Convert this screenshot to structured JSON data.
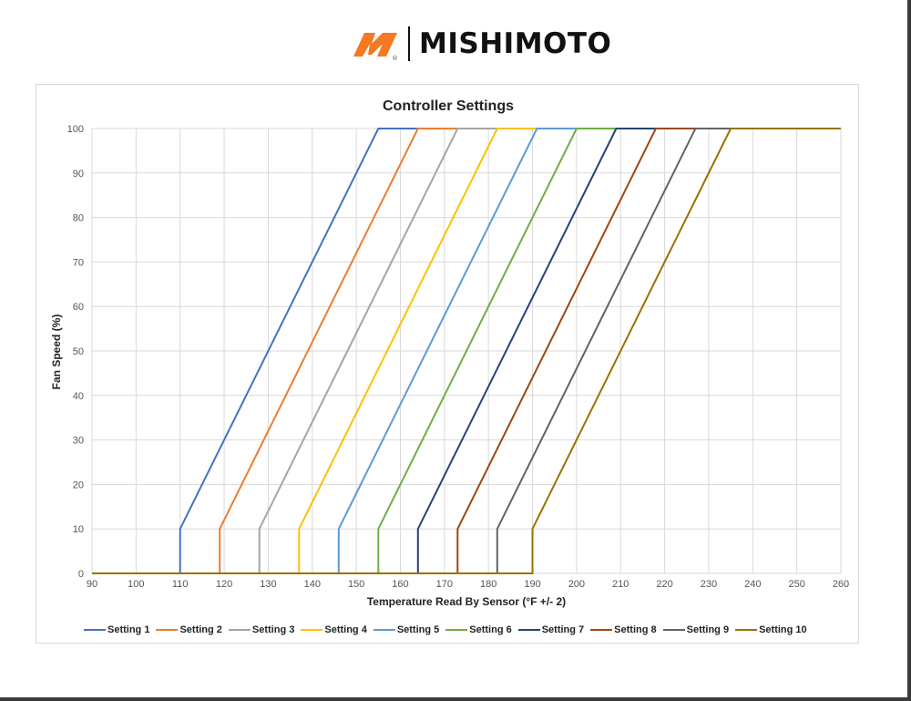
{
  "brand": {
    "name": "MISHIMOTO",
    "mark": "mishimoto-m-logo",
    "mark_color": "#f47920",
    "registered": "®"
  },
  "chart_data": {
    "type": "line",
    "title": "Controller Settings",
    "xlabel": "Temperature Read By Sensor (°F +/- 2)",
    "ylabel": "Fan Speed (%)",
    "xlim": [
      90,
      260
    ],
    "ylim": [
      0,
      100
    ],
    "xticks": [
      90,
      100,
      110,
      120,
      130,
      140,
      150,
      160,
      170,
      180,
      190,
      200,
      210,
      220,
      230,
      240,
      250,
      260
    ],
    "yticks": [
      0,
      10,
      20,
      30,
      40,
      50,
      60,
      70,
      80,
      90,
      100
    ],
    "grid": true,
    "legend_position": "bottom",
    "series": [
      {
        "name": "Setting 1",
        "color": "#4472c4",
        "x": [
          90,
          110,
          110,
          155,
          260
        ],
        "y": [
          0,
          0,
          10,
          100,
          100
        ]
      },
      {
        "name": "Setting 2",
        "color": "#ed7d31",
        "x": [
          90,
          119,
          119,
          164,
          260
        ],
        "y": [
          0,
          0,
          10,
          100,
          100
        ]
      },
      {
        "name": "Setting 3",
        "color": "#a5a5a5",
        "x": [
          90,
          128,
          128,
          173,
          260
        ],
        "y": [
          0,
          0,
          10,
          100,
          100
        ]
      },
      {
        "name": "Setting 4",
        "color": "#ffc000",
        "x": [
          90,
          137,
          137,
          182,
          260
        ],
        "y": [
          0,
          0,
          10,
          100,
          100
        ]
      },
      {
        "name": "Setting 5",
        "color": "#5b9bd5",
        "x": [
          90,
          146,
          146,
          191,
          260
        ],
        "y": [
          0,
          0,
          10,
          100,
          100
        ]
      },
      {
        "name": "Setting 6",
        "color": "#70ad47",
        "x": [
          90,
          155,
          155,
          200,
          260
        ],
        "y": [
          0,
          0,
          10,
          100,
          100
        ]
      },
      {
        "name": "Setting 7",
        "color": "#264478",
        "x": [
          90,
          164,
          164,
          209,
          260
        ],
        "y": [
          0,
          0,
          10,
          100,
          100
        ]
      },
      {
        "name": "Setting 8",
        "color": "#9e480e",
        "x": [
          90,
          173,
          173,
          218,
          260
        ],
        "y": [
          0,
          0,
          10,
          100,
          100
        ]
      },
      {
        "name": "Setting 9",
        "color": "#636363",
        "x": [
          90,
          182,
          182,
          227,
          260
        ],
        "y": [
          0,
          0,
          10,
          100,
          100
        ]
      },
      {
        "name": "Setting 10",
        "color": "#997300",
        "x": [
          90,
          190,
          190,
          235,
          260
        ],
        "y": [
          0,
          0,
          10,
          100,
          100
        ]
      }
    ]
  }
}
